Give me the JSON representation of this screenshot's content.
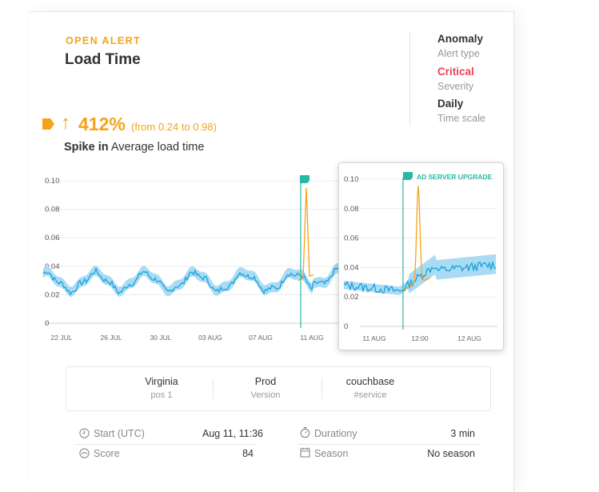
{
  "alert": {
    "status": "OPEN ALERT",
    "title": "Load Time",
    "change_arrow": "↑",
    "change_pct": "412%",
    "change_range": "(from 0.24 to 0.98)",
    "spike_label": "Spike in",
    "metric": "Average load time",
    "status_color": "#f5a31a",
    "severity_color": "#f0405a",
    "series_color": "#1aa0db",
    "band_color": "#a9dcf4",
    "anomaly_color": "#f5a31a",
    "marker_color": "#2ab7a4"
  },
  "meta": [
    {
      "value": "Anomaly",
      "label": "Alert type"
    },
    {
      "value": "Critical",
      "label": "Severity"
    },
    {
      "value": "Daily",
      "label": "Time scale"
    }
  ],
  "chart_data": [
    {
      "type": "line",
      "y_ticks": [
        "0.10",
        "0.08",
        "0.06",
        "0.04",
        "0.02",
        "0"
      ],
      "x_ticks": [
        "22 JUL",
        "26 JUL",
        "30 JUL",
        "03 AUG",
        "07 AUG",
        "11 AUG"
      ],
      "ylim": [
        0,
        0.1
      ],
      "series_daily_pattern": "oscillating around 0.025-0.035 with daily peaks",
      "spike_value": 0.098,
      "grid": true
    },
    {
      "type": "line",
      "event_label": "AD SERVER UPGRADE",
      "y_ticks": [
        "0.10",
        "0.08",
        "0.06",
        "0.04",
        "0.02",
        "0"
      ],
      "x_ticks": [
        "11 AUG",
        "12:00",
        "12 AUG"
      ],
      "ylim": [
        0,
        0.1
      ],
      "spike_value": 0.096,
      "grid": true
    }
  ],
  "tags": [
    {
      "value": "Virginia",
      "label": "pos 1"
    },
    {
      "value": "Prod",
      "label": "Version"
    },
    {
      "value": "couchbase",
      "label": "#service"
    }
  ],
  "details": {
    "start_label": "Start (UTC)",
    "start_value": "Aug 11, 11:36",
    "duration_label": "Durationy",
    "duration_value": "3 min",
    "score_label": "Score",
    "score_value": "84",
    "season_label": "Season",
    "season_value": "No season"
  }
}
